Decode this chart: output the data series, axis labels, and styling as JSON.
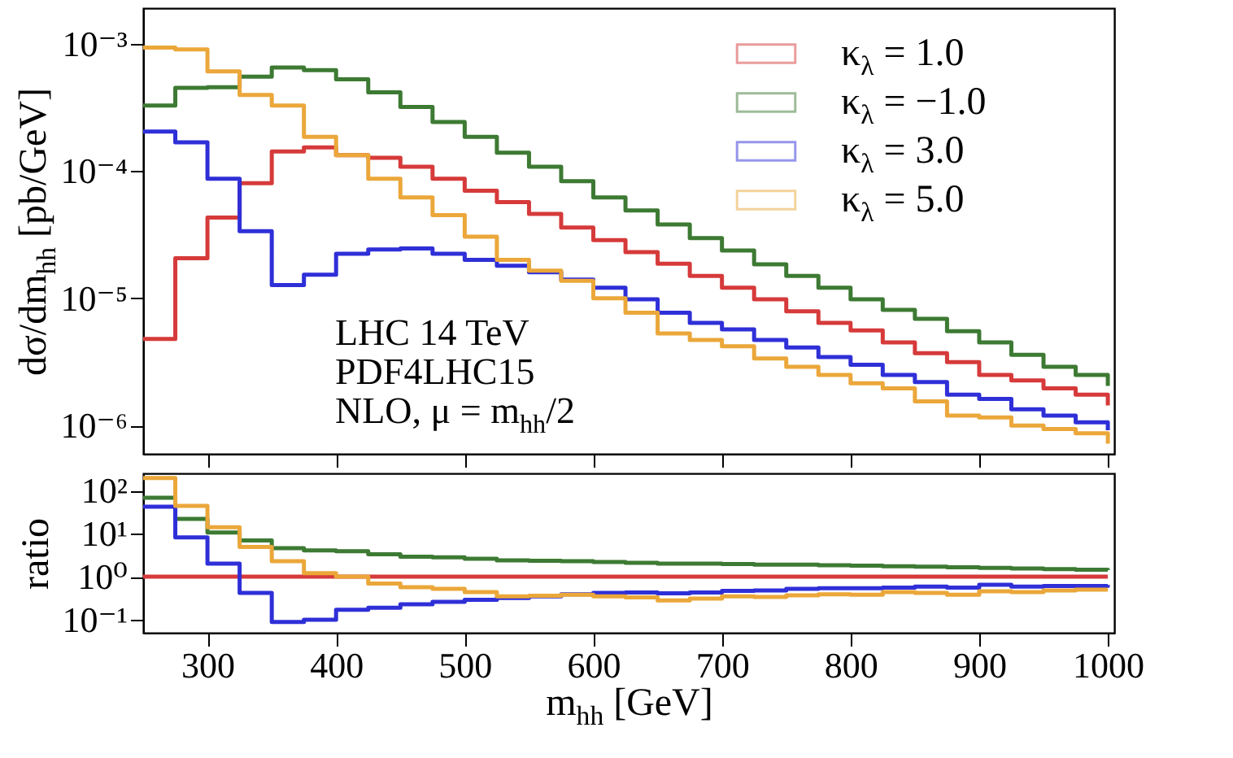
{
  "chart_data": [
    {
      "type": "step",
      "ylabel": "dσ/dm$_{hh}$ [pb/GeV]",
      "log": "y",
      "legend": "top right",
      "tick_labels": "y",
      "xlim": [
        250,
        1005
      ],
      "xticks": [
        300,
        400,
        500,
        600,
        700,
        800,
        900,
        1000
      ],
      "ylim": [
        6e-07,
        0.0019
      ],
      "yticks": [
        {
          "value": 0.001,
          "label": "10⁻³"
        },
        {
          "value": 0.0001,
          "label": "10⁻⁴"
        },
        {
          "value": 1e-05,
          "label": "10⁻⁵"
        },
        {
          "value": 1e-06,
          "label": "10⁻⁶"
        }
      ],
      "x": [
        250,
        275,
        300,
        325,
        350,
        375,
        400,
        425,
        450,
        475,
        500,
        525,
        550,
        575,
        600,
        625,
        650,
        675,
        700,
        725,
        750,
        775,
        800,
        825,
        850,
        875,
        900,
        925,
        950,
        975,
        1000
      ],
      "annotations": [
        "LHC 14 TeV",
        "PDF4LHC15",
        "NLO, μ = m$_{hh}$/2"
      ],
      "series": [
        {
          "name": "κ$_{λ}$ = 1.0",
          "color": "#d63a3a",
          "values": [
            4.8e-06,
            2.06e-05,
            4.3e-05,
            8e-05,
            0.000142,
            0.000153,
            0.000133,
            0.000127,
            0.000108,
            8.7e-05,
            7e-05,
            5.7e-05,
            4.6e-05,
            3.6e-05,
            2.86e-05,
            2.3e-05,
            1.87e-05,
            1.5e-05,
            1.21e-05,
            9.8e-06,
            7.9e-06,
            6.4e-06,
            5.6e-06,
            4.5e-06,
            3.7e-06,
            3.15e-06,
            2.5e-06,
            2.26e-06,
            1.96e-06,
            1.75e-06,
            1.44e-06
          ]
        },
        {
          "name": "κ$_{λ}$ = −1.0",
          "color": "#3d7a33",
          "values": [
            0.000327,
            0.00045,
            0.000455,
            0.00055,
            0.00065,
            0.00062,
            0.000525,
            0.000414,
            0.000318,
            0.000242,
            0.000185,
            0.000139,
            0.000108,
            8.3e-05,
            6.2e-05,
            4.9e-05,
            3.8e-05,
            2.97e-05,
            2.37e-05,
            1.85e-05,
            1.5e-05,
            1.21e-05,
            9.8e-06,
            8.1e-06,
            6.9e-06,
            5.5e-06,
            4.5e-06,
            3.6e-06,
            2.9e-06,
            2.5e-06,
            2.05e-06
          ]
        },
        {
          "name": "κ$_{λ}$ = 3.0",
          "color": "#2f2fd8",
          "values": [
            0.000204,
            0.000168,
            8.7e-05,
            3.37e-05,
            1.27e-05,
            1.53e-05,
            2.24e-05,
            2.42e-05,
            2.46e-05,
            2.24e-05,
            2e-05,
            1.8e-05,
            1.6e-05,
            1.4e-05,
            1.21e-05,
            9.8e-06,
            7.7e-06,
            6.4e-06,
            5.7e-06,
            4.7e-06,
            4.1e-06,
            3.46e-06,
            3e-06,
            2.5e-06,
            2.2e-06,
            1.75e-06,
            1.62e-06,
            1.34e-06,
            1.2e-06,
            1.06e-06,
            9.2e-07
          ]
        },
        {
          "name": "κ$_{λ}$ = 5.0",
          "color": "#eba73a",
          "values": [
            0.00093,
            0.0009,
            0.000605,
            0.000395,
            0.000327,
            0.000185,
            0.000133,
            8.7e-05,
            6.2e-05,
            4.5e-05,
            3.05e-05,
            2e-05,
            1.65e-05,
            1.37e-05,
            1e-05,
            7.7e-06,
            5.3e-06,
            4.7e-06,
            4.2e-06,
            3.37e-06,
            2.9e-06,
            2.5e-06,
            2.15e-06,
            1.96e-06,
            1.55e-06,
            1.2e-06,
            1.16e-06,
            1e-06,
            9.4e-07,
            8.7e-07,
            7.2e-07
          ]
        }
      ]
    },
    {
      "type": "step",
      "ylabel": "ratio",
      "xlabel": "m$_{hh}$ [GeV]",
      "log": "y",
      "xlim": [
        250,
        1005
      ],
      "xticks": [
        300,
        400,
        500,
        600,
        700,
        800,
        900,
        1000
      ],
      "ylim": [
        0.05,
        250
      ],
      "yticks": [
        {
          "value": 100,
          "label": "10²"
        },
        {
          "value": 10,
          "label": "10¹"
        },
        {
          "value": 1,
          "label": "10⁰"
        },
        {
          "value": 0.1,
          "label": "10⁻¹"
        }
      ],
      "x": [
        250,
        275,
        300,
        325,
        350,
        375,
        400,
        425,
        450,
        475,
        500,
        525,
        550,
        575,
        600,
        625,
        650,
        675,
        700,
        725,
        750,
        775,
        800,
        825,
        850,
        875,
        900,
        925,
        950,
        975,
        1000
      ],
      "series": [
        {
          "color": "#d63a3a",
          "values": [
            1,
            1,
            1,
            1,
            1,
            1,
            1,
            1,
            1,
            1,
            1,
            1,
            1,
            1,
            1,
            1,
            1,
            1,
            1,
            1,
            1,
            1,
            1,
            1,
            1,
            1,
            1,
            1,
            1,
            1,
            1
          ]
        },
        {
          "color": "#3d7a33",
          "values": [
            68,
            22,
            10.6,
            6.9,
            4.6,
            4.05,
            3.9,
            3.3,
            2.9,
            2.8,
            2.6,
            2.4,
            2.35,
            2.3,
            2.2,
            2.1,
            2.0,
            2.0,
            1.96,
            1.9,
            1.9,
            1.85,
            1.8,
            1.75,
            1.7,
            1.65,
            1.6,
            1.55,
            1.5,
            1.45,
            1.42
          ]
        },
        {
          "color": "#2f2fd8",
          "values": [
            42,
            8.2,
            2.0,
            0.42,
            0.089,
            0.1,
            0.17,
            0.19,
            0.23,
            0.26,
            0.29,
            0.32,
            0.35,
            0.39,
            0.42,
            0.43,
            0.41,
            0.43,
            0.47,
            0.48,
            0.52,
            0.54,
            0.54,
            0.56,
            0.59,
            0.56,
            0.65,
            0.59,
            0.61,
            0.61,
            0.64
          ]
        },
        {
          "color": "#eba73a",
          "values": [
            194,
            44,
            14,
            4.9,
            2.3,
            1.2,
            1.0,
            0.69,
            0.57,
            0.52,
            0.44,
            0.35,
            0.36,
            0.38,
            0.35,
            0.33,
            0.28,
            0.31,
            0.35,
            0.34,
            0.37,
            0.39,
            0.38,
            0.44,
            0.42,
            0.38,
            0.46,
            0.44,
            0.48,
            0.5,
            0.5
          ]
        }
      ]
    }
  ]
}
